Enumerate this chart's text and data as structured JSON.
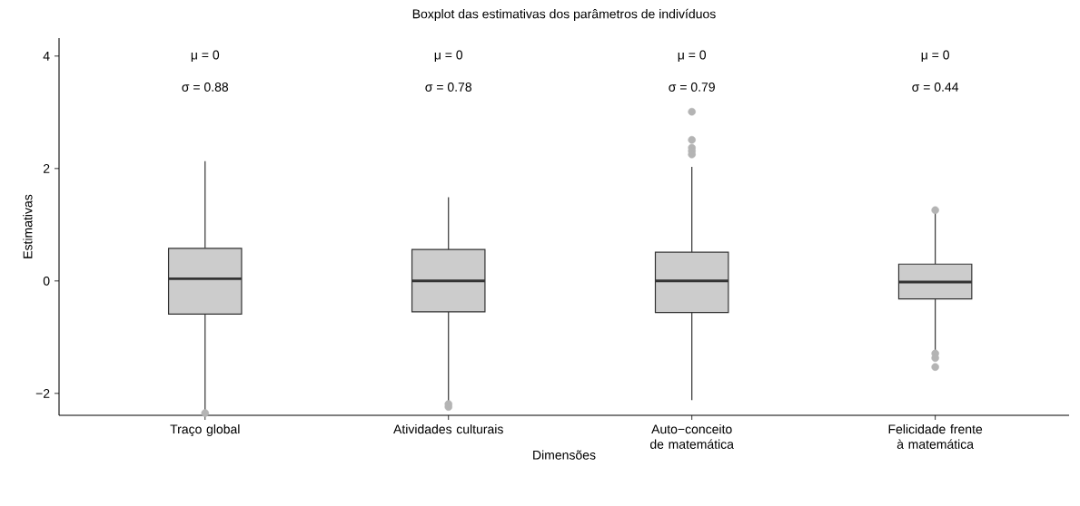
{
  "chart_data": {
    "type": "box",
    "title": "Boxplot das estimativas dos parâmetros de indivíduos",
    "xlabel": "Dimensões",
    "ylabel": "Estimativas",
    "categories": [
      "Traço global",
      "Atividades culturais",
      "Auto−conceito de matemática",
      "Felicidade frente à matemática"
    ],
    "color": "#cccccc",
    "boxes": [
      {
        "low": -2.3,
        "q1": -0.59,
        "median": 0.04,
        "q3": 0.58,
        "high": 2.13,
        "outliers": [
          -2.35
        ]
      },
      {
        "low": -2.16,
        "q1": -0.55,
        "median": 0.0,
        "q3": 0.56,
        "high": 1.49,
        "outliers": [
          -2.19,
          -2.24
        ]
      },
      {
        "low": -2.12,
        "q1": -0.56,
        "median": 0.0,
        "q3": 0.51,
        "high": 2.03,
        "outliers": [
          3.01,
          2.51,
          2.37,
          2.31,
          2.25
        ]
      },
      {
        "low": -1.24,
        "q1": -0.32,
        "median": -0.02,
        "q3": 0.3,
        "high": 1.24,
        "outliers": [
          1.26,
          -1.29,
          -1.37,
          -1.53
        ]
      }
    ],
    "ylim": [
      -2.39,
      4.32
    ],
    "yticks": [
      {
        "value": -2,
        "label": "−2"
      },
      0,
      2,
      4
    ],
    "annotations": [
      "μ = 0",
      "σ = 0.88",
      "μ = 0",
      "σ = 0.78",
      "μ = 0",
      "σ = 0.79",
      "μ = 0",
      "σ = 0.44"
    ],
    "grid": false
  }
}
